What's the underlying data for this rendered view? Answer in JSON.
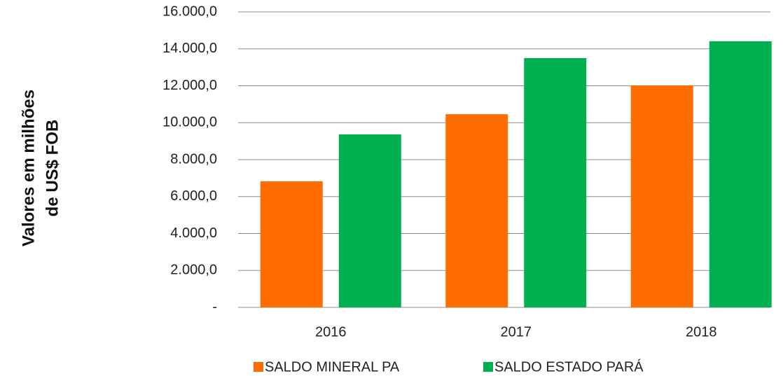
{
  "chart_data": {
    "type": "bar",
    "ylabel": [
      "Valores em milhões",
      "de  US$ FOB"
    ],
    "categories": [
      "2016",
      "2017",
      "2018"
    ],
    "series": [
      {
        "name": "SALDO MINERAL PA",
        "color": "#ff6d00",
        "values": [
          6830,
          10460,
          12020
        ]
      },
      {
        "name": "SALDO ESTADO PARÁ",
        "color": "#00b050",
        "values": [
          9370,
          13500,
          14410
        ]
      }
    ],
    "ylim": [
      0,
      16000
    ],
    "yticks": [
      {
        "value": 0,
        "label": "-"
      },
      {
        "value": 2000,
        "label": "2.000,0"
      },
      {
        "value": 4000,
        "label": "4.000,0"
      },
      {
        "value": 6000,
        "label": "6.000,0"
      },
      {
        "value": 8000,
        "label": "8.000,0"
      },
      {
        "value": 10000,
        "label": "10.000,0"
      },
      {
        "value": 12000,
        "label": "12.000,0"
      },
      {
        "value": 14000,
        "label": "14.000,0"
      },
      {
        "value": 16000,
        "label": "16.000,0"
      }
    ],
    "grid": true,
    "legend": "bottom"
  }
}
